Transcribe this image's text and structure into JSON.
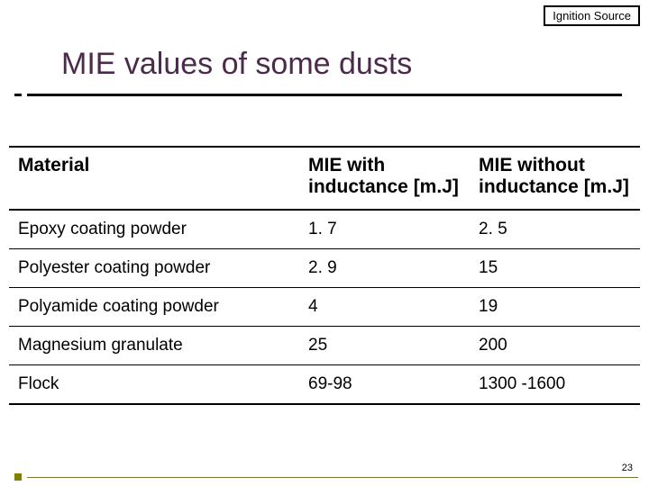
{
  "tag": "Ignition Source",
  "title": "MIE values of some dusts",
  "page_number": "23",
  "table": {
    "columns": [
      {
        "header": "Material",
        "class": "col-material"
      },
      {
        "header": "MIE with inductance [m.J]",
        "class": "col-with"
      },
      {
        "header": "MIE without inductance [m.J]",
        "class": "col-without"
      }
    ],
    "rows": [
      [
        "Epoxy coating powder",
        "1. 7",
        "2. 5"
      ],
      [
        "Polyester coating powder",
        "2. 9",
        "15"
      ],
      [
        "Polyamide coating powder",
        "4",
        "19"
      ],
      [
        "Magnesium granulate",
        "25",
        "200"
      ],
      [
        "Flock",
        "69-98",
        "1300 -1600"
      ]
    ]
  },
  "style": {
    "title_color": "#4b2a4b",
    "accent_color": "#808000",
    "background_color": "#ffffff",
    "border_color": "#000000",
    "title_fontsize": 34,
    "header_fontsize": 21,
    "cell_fontsize": 19
  }
}
